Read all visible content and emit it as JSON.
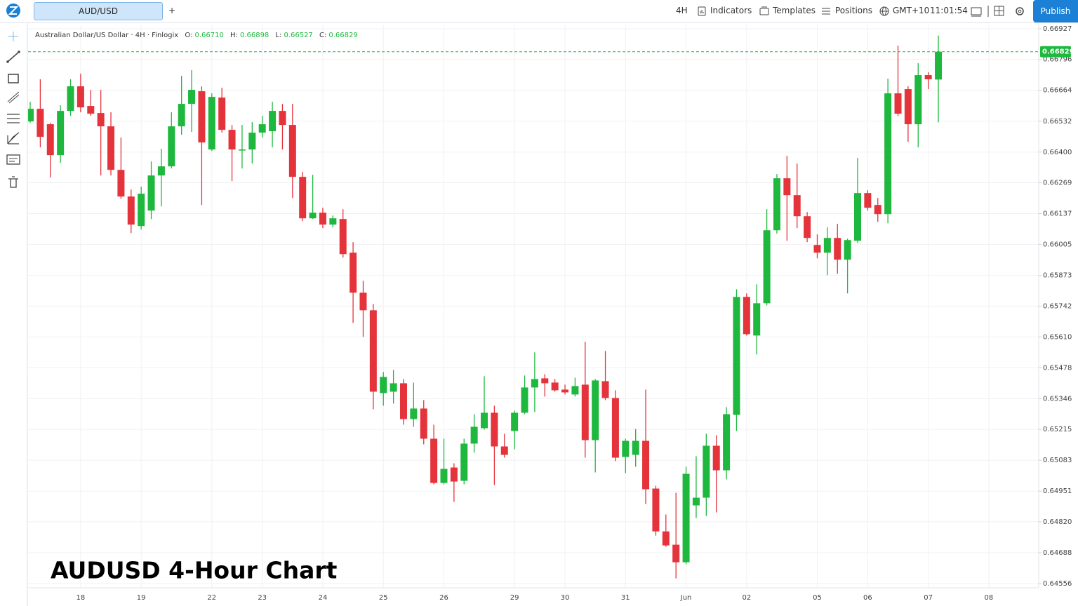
{
  "toolbar": {
    "symbol_tab": "AUD/USD",
    "add_tab": "+",
    "interval": "4H",
    "indicators": "Indicators",
    "templates": "Templates",
    "positions": "Positions",
    "timezone": "GMT+10",
    "time": "11:01:54",
    "publish": "Publish"
  },
  "legend": {
    "symbol": "Australian Dollar/US Dollar · 4H · Finlogix",
    "o_label": "O:",
    "o": "0.66710",
    "h_label": "H:",
    "h": "0.66898",
    "l_label": "L:",
    "l": "0.66527",
    "c_label": "C:",
    "c": "0.66829"
  },
  "chart_data": {
    "type": "candlestick",
    "title": "AUDUSD 4-Hour Chart",
    "categories": [
      null,
      null,
      null,
      null,
      null,
      "18",
      null,
      null,
      null,
      null,
      null,
      "19",
      null,
      null,
      null,
      null,
      null,
      null,
      "22",
      null,
      null,
      null,
      null,
      "23",
      null,
      null,
      null,
      null,
      null,
      "24",
      null,
      null,
      null,
      null,
      null,
      "25",
      null,
      null,
      null,
      null,
      null,
      "26",
      null,
      null,
      null,
      null,
      null,
      null,
      "29",
      null,
      null,
      null,
      null,
      "30",
      null,
      null,
      null,
      null,
      null,
      "31",
      null,
      null,
      null,
      null,
      null,
      "Jun",
      null,
      null,
      null,
      null,
      null,
      "02",
      null,
      null,
      null,
      null,
      null,
      null,
      "05",
      null,
      null,
      null,
      null,
      "06",
      null,
      null,
      null,
      null,
      null,
      "07",
      null,
      null,
      null,
      null,
      null,
      "08"
    ],
    "open": [
      0.66531,
      0.66585,
      0.66519,
      0.66387,
      0.66576,
      0.66681,
      0.66597,
      0.66567,
      0.6651,
      0.66324,
      0.6621,
      0.66084,
      0.6615,
      0.663,
      0.66339,
      0.6651,
      0.66606,
      0.6666,
      0.66411,
      0.66633,
      0.66495,
      0.66408,
      0.66411,
      0.66483,
      0.66489,
      0.66576,
      0.66516,
      0.66294,
      0.66117,
      0.66141,
      0.6609,
      0.66114,
      0.6597,
      0.65799,
      0.65724,
      0.6537,
      0.65376,
      0.65412,
      0.65259,
      0.65304,
      0.65175,
      0.64986,
      0.65052,
      0.64995,
      0.65154,
      0.6522,
      0.65286,
      0.65142,
      0.65208,
      0.65286,
      0.65394,
      0.65433,
      0.65415,
      0.65385,
      0.65364,
      0.65406,
      0.65169,
      0.65421,
      0.65349,
      0.65097,
      0.65106,
      0.65166,
      0.64962,
      0.64779,
      0.64722,
      0.64647,
      0.6489,
      0.64923,
      0.65145,
      0.6504,
      0.65277,
      0.65781,
      0.65616,
      0.65754,
      0.66066,
      0.66288,
      0.66216,
      0.66126,
      0.66003,
      0.6597,
      0.66033,
      0.6594,
      0.66021,
      0.66225,
      0.66174,
      0.66135,
      0.66651,
      0.66669,
      0.66519,
      0.66729,
      0.6671,
      null,
      null,
      null,
      null,
      null
    ],
    "high": [
      0.66615,
      0.66711,
      0.66525,
      0.666,
      0.66711,
      0.66735,
      0.66666,
      0.66666,
      0.6657,
      0.66462,
      0.6624,
      0.66252,
      0.6636,
      0.66414,
      0.6657,
      0.66726,
      0.6675,
      0.66681,
      0.66651,
      0.66675,
      0.66516,
      0.66516,
      0.66528,
      0.66555,
      0.66615,
      0.66606,
      0.66606,
      0.66315,
      0.66303,
      0.66162,
      0.66129,
      0.66156,
      0.66015,
      0.6585,
      0.65751,
      0.6546,
      0.65469,
      0.6543,
      0.65415,
      0.6534,
      0.65235,
      0.65175,
      0.6507,
      0.65175,
      0.6528,
      0.65442,
      0.65316,
      0.65196,
      0.65295,
      0.65445,
      0.65544,
      0.65451,
      0.6543,
      0.65406,
      0.65436,
      0.65589,
      0.6543,
      0.6555,
      0.65382,
      0.65175,
      0.65217,
      0.65385,
      0.64974,
      0.64851,
      0.64944,
      0.65055,
      0.651,
      0.65196,
      0.6519,
      0.6531,
      0.65814,
      0.65796,
      0.65835,
      0.66156,
      0.66306,
      0.66384,
      0.66351,
      0.66144,
      0.66048,
      0.66078,
      0.66093,
      0.6603,
      0.66375,
      0.66237,
      0.66204,
      0.66714,
      0.66855,
      0.66681,
      0.6678,
      0.66741,
      0.66898,
      null,
      null,
      null,
      null,
      null
    ],
    "low": [
      0.66525,
      0.6642,
      0.66291,
      0.66354,
      0.66555,
      0.6657,
      0.66555,
      0.663,
      0.663,
      0.66201,
      0.66054,
      0.66069,
      0.66114,
      0.66168,
      0.6633,
      0.66474,
      0.66486,
      0.66174,
      0.66405,
      0.66483,
      0.66276,
      0.6633,
      0.66351,
      0.66462,
      0.6642,
      0.66411,
      0.66204,
      0.66105,
      0.66114,
      0.66075,
      0.66078,
      0.65949,
      0.6567,
      0.6561,
      0.65301,
      0.65316,
      0.65325,
      0.65235,
      0.65226,
      0.65151,
      0.6498,
      0.6498,
      0.64905,
      0.6498,
      0.65115,
      0.65214,
      0.64977,
      0.65094,
      0.6513,
      0.6528,
      0.65289,
      0.65355,
      0.65376,
      0.65364,
      0.65355,
      0.65094,
      0.65031,
      0.6534,
      0.65079,
      0.65028,
      0.65055,
      0.64896,
      0.64761,
      0.64713,
      0.64578,
      0.64638,
      0.64836,
      0.64845,
      0.6486,
      0.65001,
      0.65208,
      0.65616,
      0.65535,
      0.65745,
      0.66051,
      0.66021,
      0.66075,
      0.66015,
      0.65946,
      0.65874,
      0.6588,
      0.65796,
      0.66012,
      0.6615,
      0.66102,
      0.66096,
      0.66555,
      0.66444,
      0.6642,
      0.66669,
      0.66527,
      null,
      null,
      null,
      null,
      null
    ],
    "close": [
      0.66585,
      0.66465,
      0.66387,
      0.66576,
      0.66681,
      0.66591,
      0.66564,
      0.6651,
      0.66324,
      0.6621,
      0.6609,
      0.66222,
      0.663,
      0.66339,
      0.6651,
      0.66606,
      0.66666,
      0.66441,
      0.66636,
      0.66495,
      0.66411,
      0.66411,
      0.66483,
      0.66519,
      0.66576,
      0.66516,
      0.66294,
      0.66117,
      0.66141,
      0.6609,
      0.66117,
      0.65964,
      0.65799,
      0.65724,
      0.65376,
      0.65439,
      0.65412,
      0.65259,
      0.65304,
      0.65175,
      0.64986,
      0.65046,
      0.64992,
      0.65154,
      0.65226,
      0.65286,
      0.65142,
      0.65106,
      0.65286,
      0.65394,
      0.6543,
      0.65412,
      0.65382,
      0.65373,
      0.654,
      0.65169,
      0.65424,
      0.65349,
      0.65094,
      0.65166,
      0.65166,
      0.64959,
      0.64779,
      0.64719,
      0.64647,
      0.65025,
      0.64923,
      0.65145,
      0.6504,
      0.6528,
      0.65781,
      0.65622,
      0.65754,
      0.66066,
      0.66288,
      0.66216,
      0.66126,
      0.66033,
      0.6597,
      0.66033,
      0.6594,
      0.66024,
      0.66225,
      0.66162,
      0.66135,
      0.66651,
      0.66564,
      0.66519,
      0.66729,
      0.66711,
      0.66829,
      null,
      null,
      null,
      null,
      null
    ],
    "up_color": "#1fb83f",
    "down_color": "#e5333b",
    "ylim": [
      0.64538,
      0.66942
    ],
    "yticks": [
      0.66927,
      0.66796,
      0.66664,
      0.66532,
      {
        "value": 0.664,
        "label": "0.66400"
      },
      0.66269,
      0.66137,
      0.66005,
      0.65873,
      0.65742,
      {
        "value": 0.6561,
        "label": "0.65610"
      },
      0.65478,
      0.65346,
      0.65215,
      0.65083,
      0.64951,
      {
        "value": 0.6482,
        "label": "0.64820"
      },
      0.64688,
      0.64556
    ],
    "grid": true
  }
}
